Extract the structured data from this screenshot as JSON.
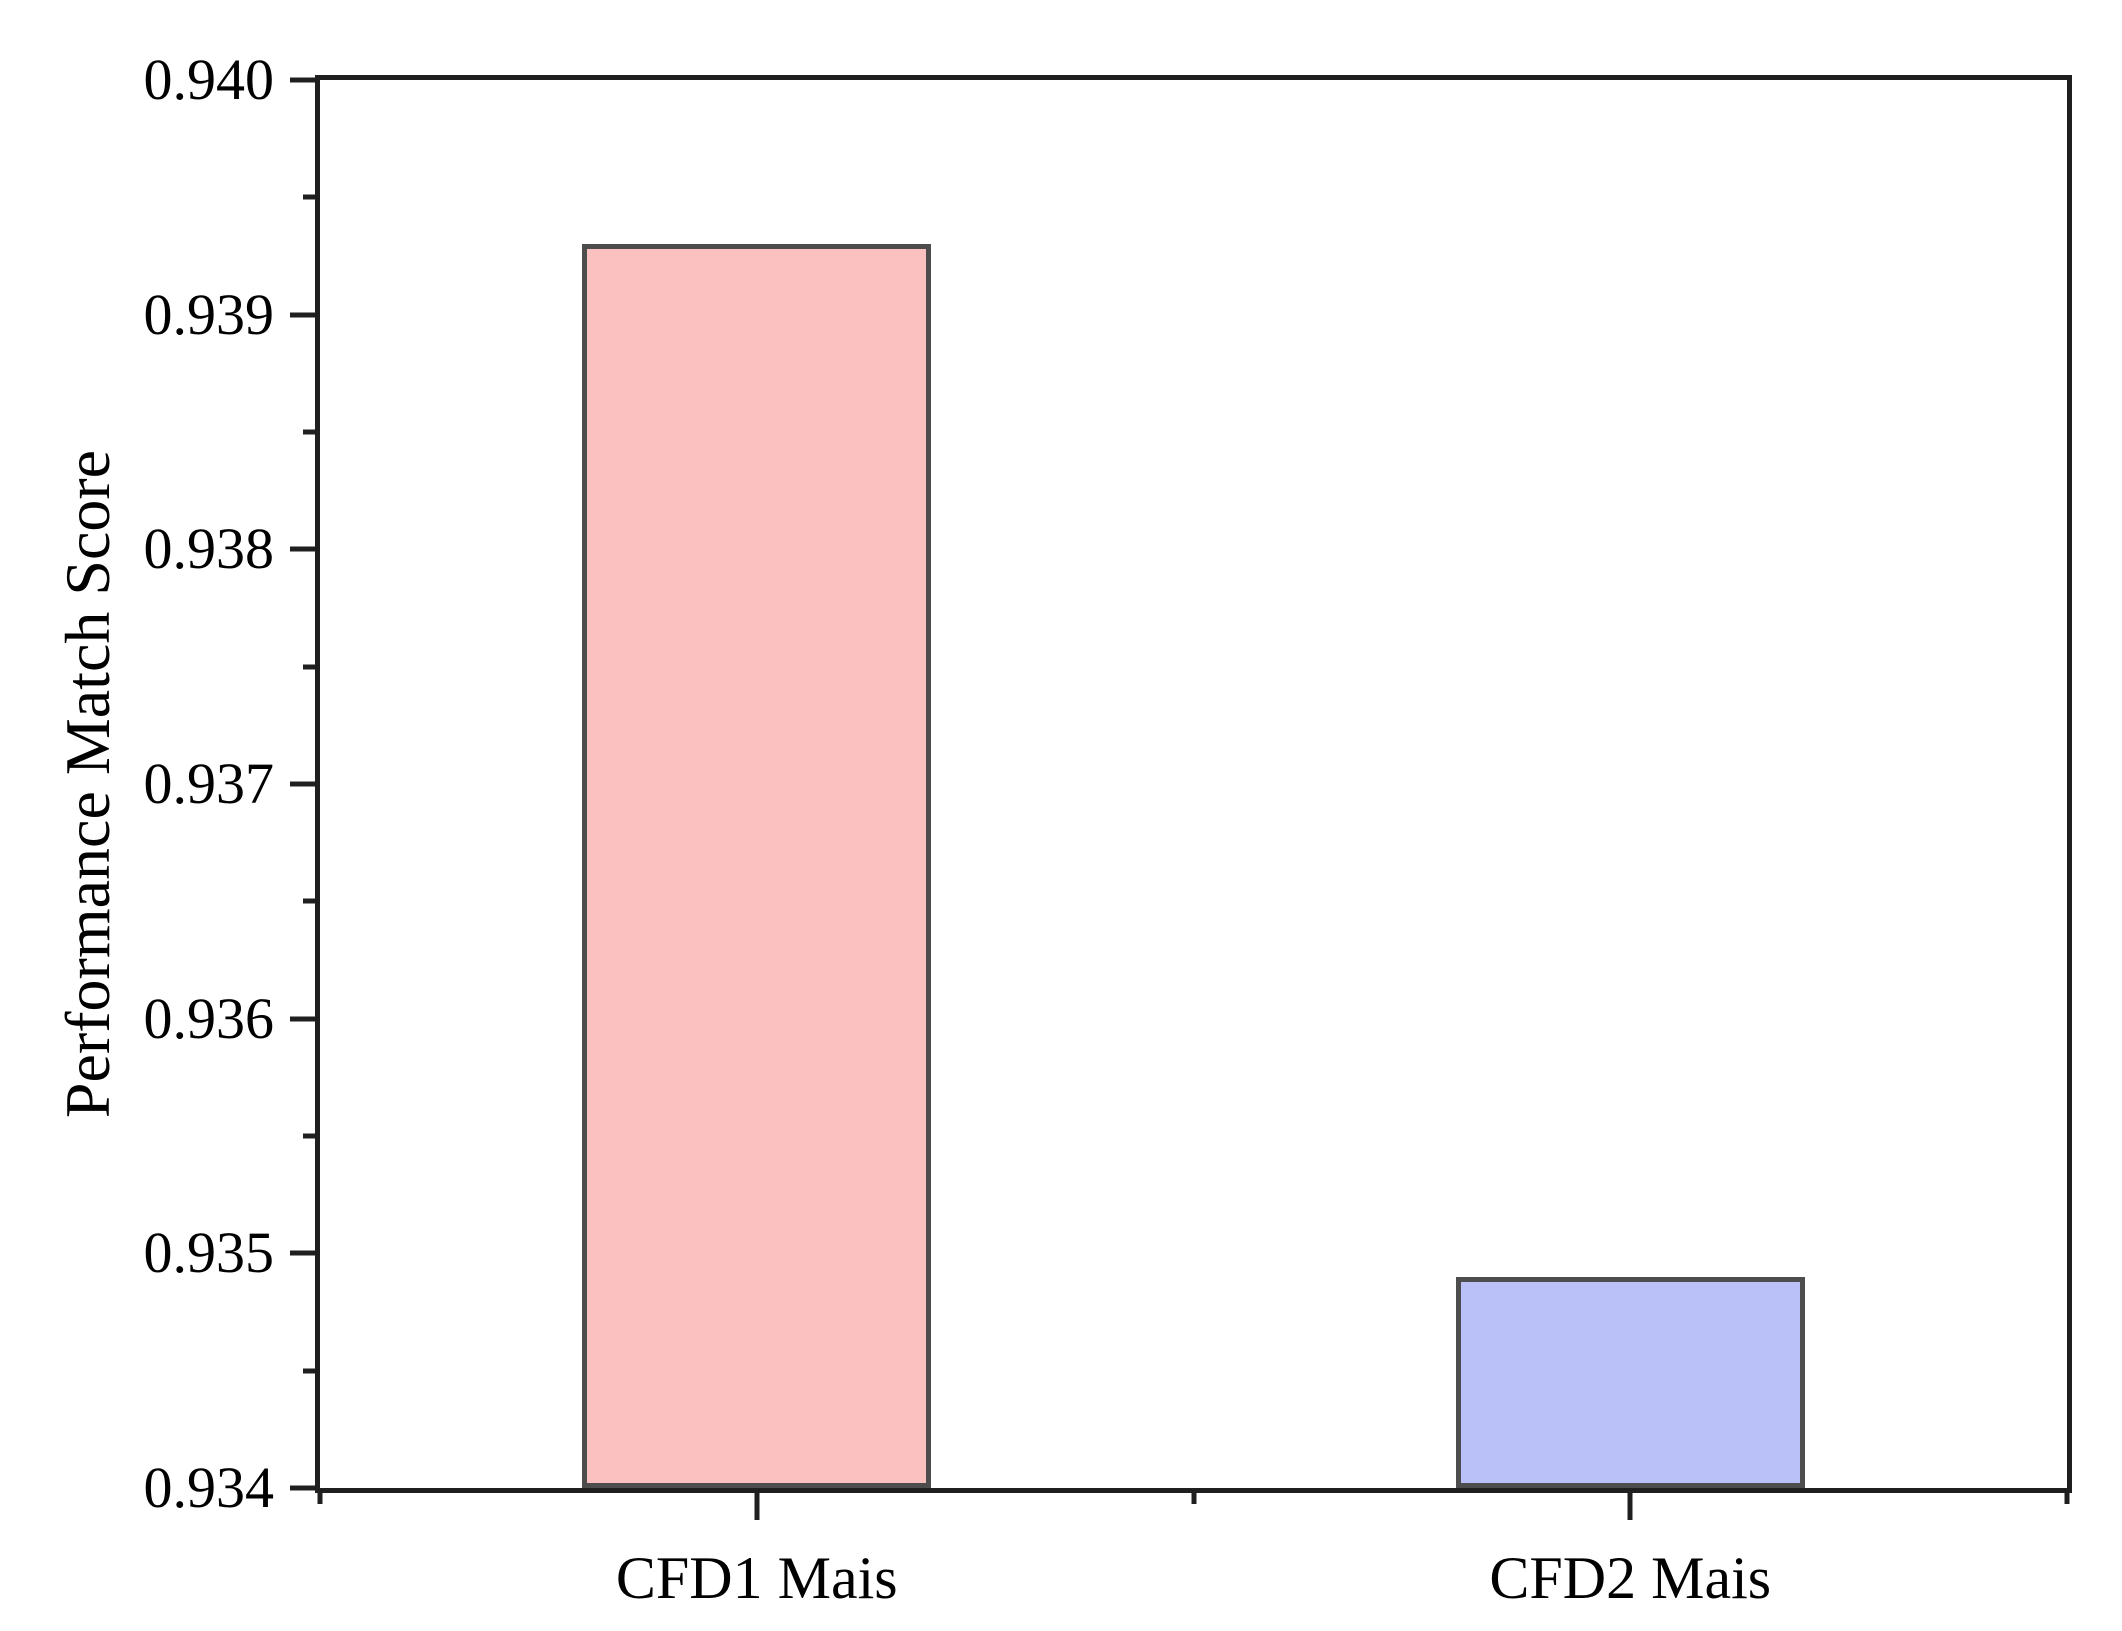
{
  "chart_data": {
    "type": "bar",
    "title": "",
    "ylabel": "Performance Match Score",
    "xlabel": "",
    "categories": [
      "CFD1 Mais",
      "CFD2 Mais"
    ],
    "values": [
      0.9393,
      0.9349
    ],
    "ylim": [
      0.934,
      0.94
    ],
    "ytick_step": 0.001,
    "ytick_labels": [
      "0.940",
      "0.939",
      "0.938",
      "0.937",
      "0.936",
      "0.935",
      "0.934"
    ],
    "minor_ticks": true,
    "grid": false,
    "legend": "none",
    "bar_width_fraction_of_plot": 0.2,
    "bar_colors": [
      "#fbc1c1",
      "#b9c1f8"
    ],
    "bar_border_color": "#4d4d4d",
    "axis_color": "#1f1f1f",
    "text_color": "#000000",
    "background": "#ffffff"
  }
}
